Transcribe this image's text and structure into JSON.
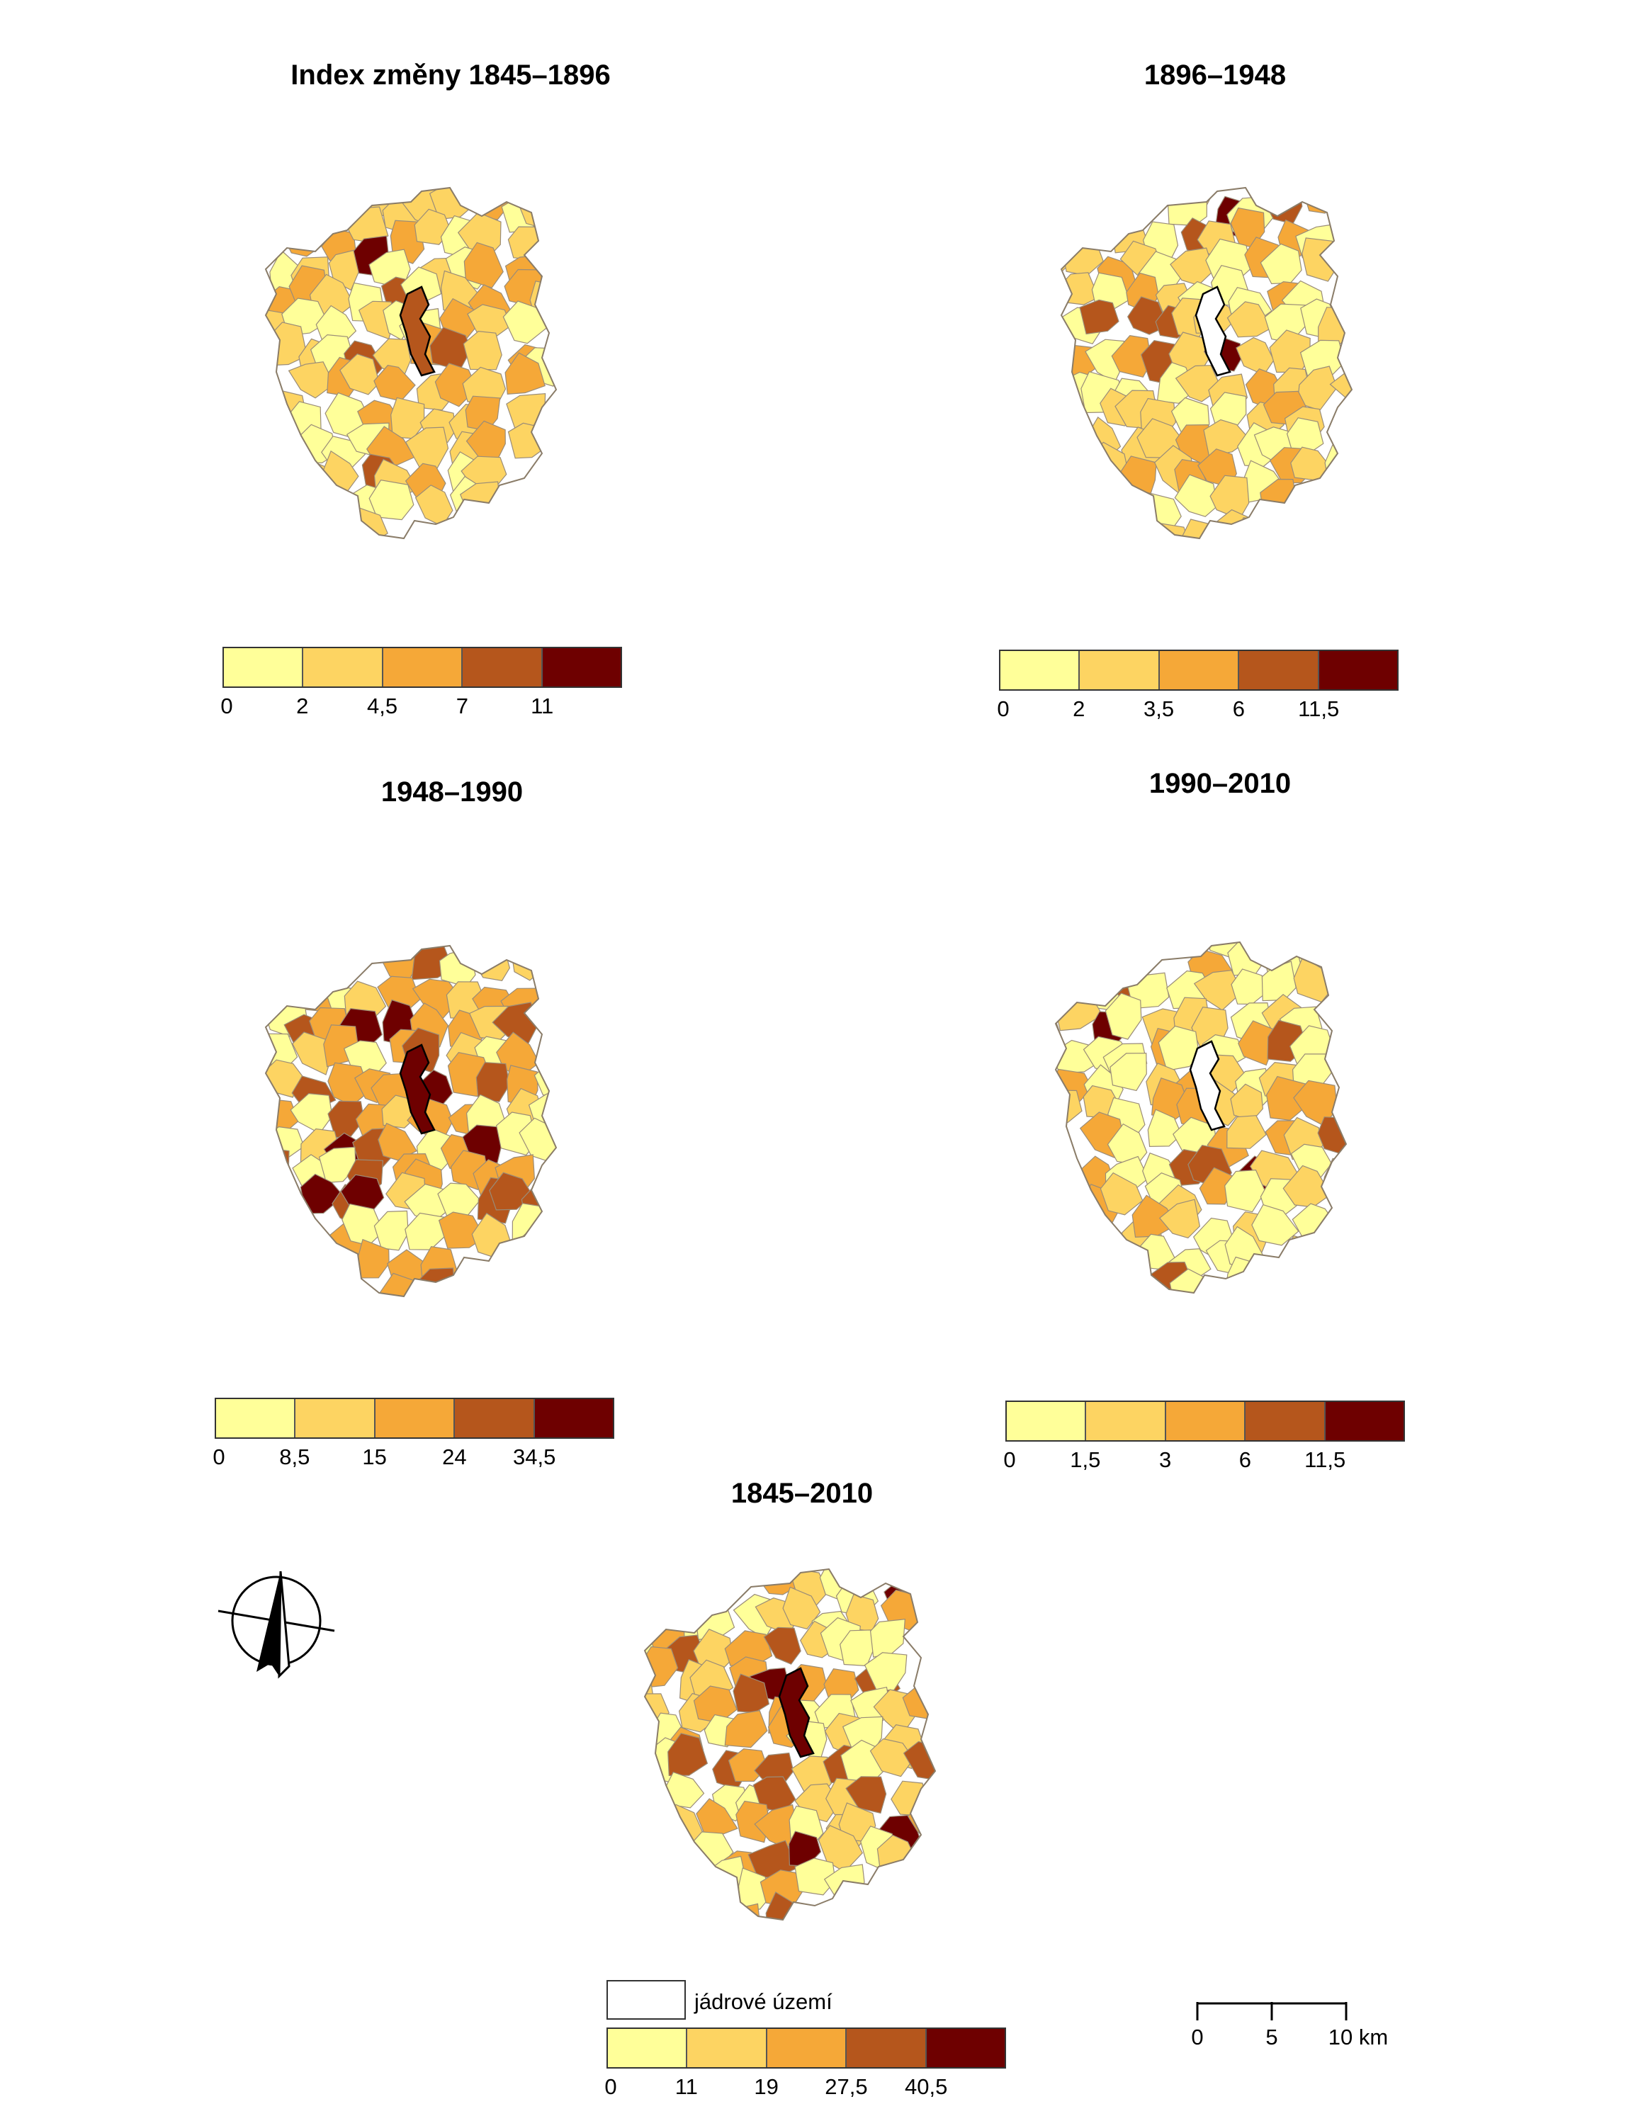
{
  "colors": [
    "#ffff99",
    "#fdd462",
    "#f5a838",
    "#b5561c",
    "#6e0000"
  ],
  "panels": [
    {
      "title": "Index změny 1845–1896",
      "legend_ticks": [
        "0",
        "2",
        "4,5",
        "7",
        "11"
      ]
    },
    {
      "title": "1896–1948",
      "legend_ticks": [
        "0",
        "2",
        "3,5",
        "6",
        "11,5"
      ]
    },
    {
      "title": "1948–1990",
      "legend_ticks": [
        "0",
        "8,5",
        "15",
        "24",
        "34,5"
      ]
    },
    {
      "title": "1990–2010",
      "legend_ticks": [
        "0",
        "1,5",
        "3",
        "6",
        "11,5"
      ]
    },
    {
      "title": "1845–2010",
      "legend_ticks": [
        "0",
        "11",
        "19",
        "27,5",
        "40,5"
      ]
    }
  ],
  "core_area_label": "jádrové území",
  "scale": {
    "ticks": [
      "0",
      "5",
      "10 km"
    ]
  },
  "north_arrow_icon": "north-arrow-icon"
}
